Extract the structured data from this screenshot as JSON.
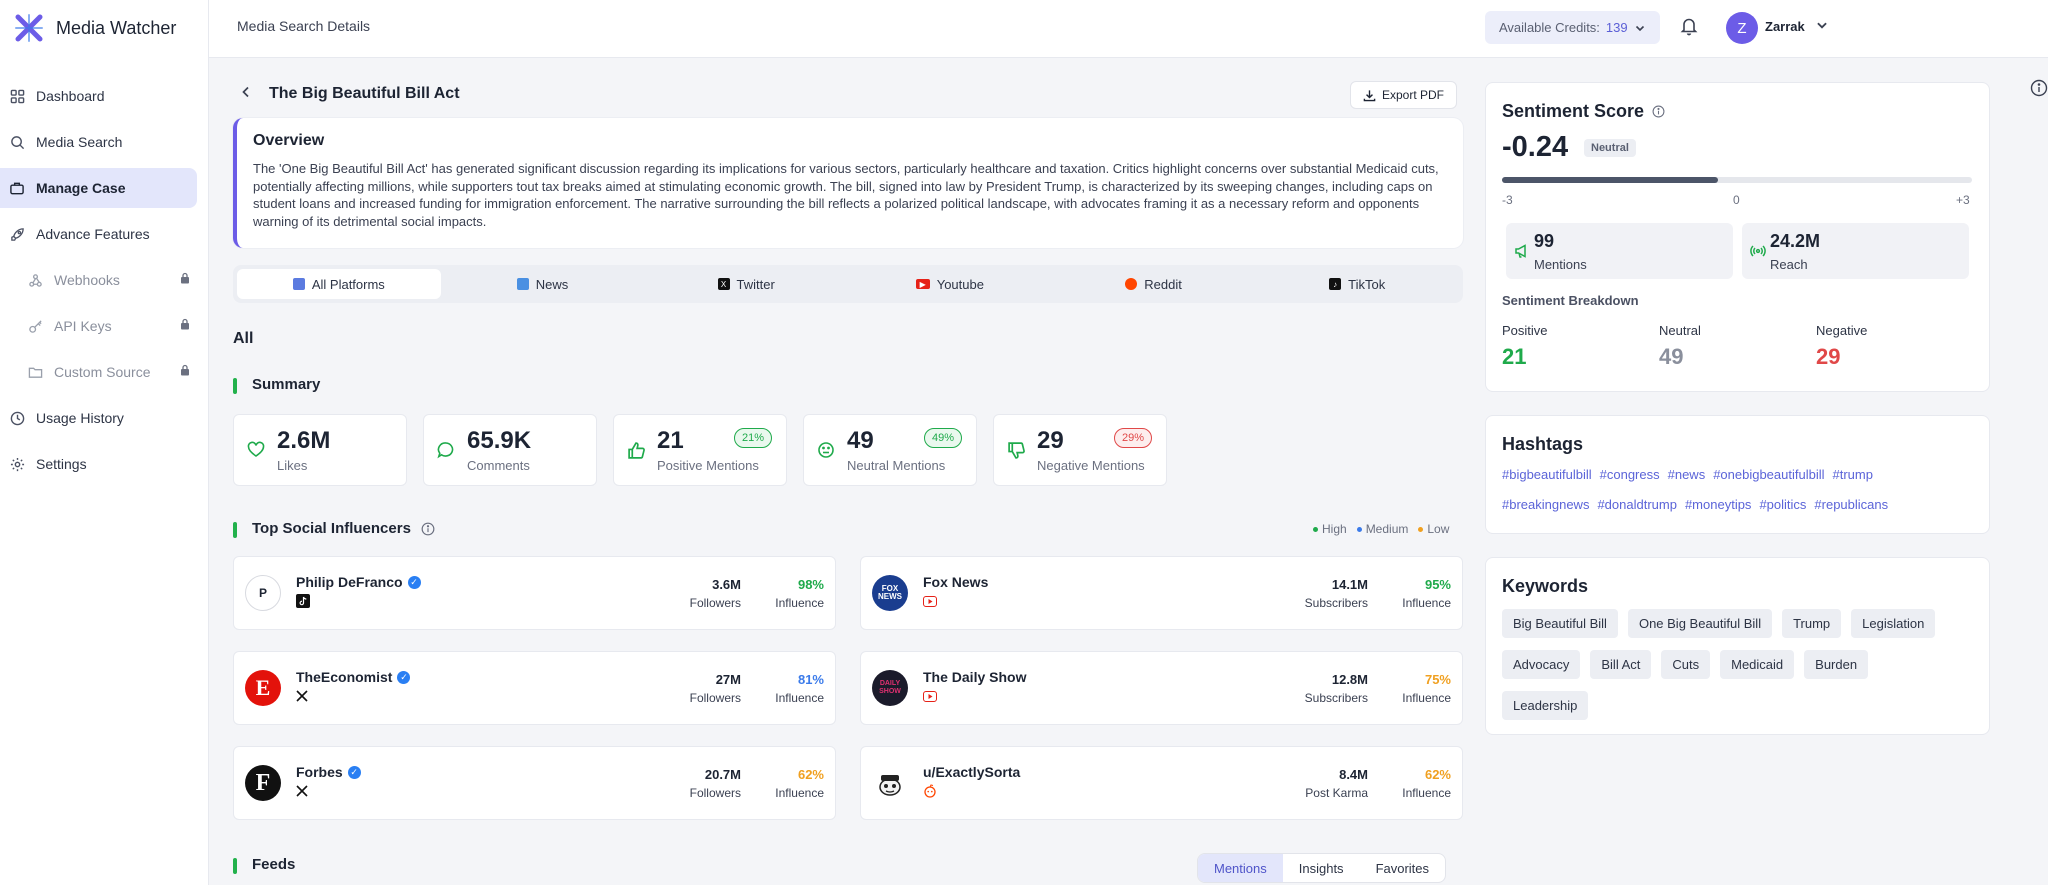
{
  "brand": {
    "name": "Media Watcher"
  },
  "topbar": {
    "title": "Media Search Details",
    "credits_label": "Available Credits:",
    "credits_value": "139",
    "user_initial": "Z",
    "user_name": "Zarrak"
  },
  "sidebar": {
    "items": [
      {
        "label": "Dashboard",
        "icon": "grid-icon"
      },
      {
        "label": "Media Search",
        "icon": "search-icon"
      },
      {
        "label": "Manage Case",
        "icon": "briefcase-icon",
        "active": true
      },
      {
        "label": "Advance Features",
        "icon": "rocket-icon"
      },
      {
        "label": "Webhooks",
        "icon": "webhook-icon",
        "locked": true
      },
      {
        "label": "API Keys",
        "icon": "key-icon",
        "locked": true
      },
      {
        "label": "Custom Source",
        "icon": "folder-icon",
        "locked": true
      },
      {
        "label": "Usage History",
        "icon": "clock-icon"
      },
      {
        "label": "Settings",
        "icon": "gear-icon"
      }
    ]
  },
  "case": {
    "title": "The Big Beautiful Bill Act",
    "export_label": "Export PDF"
  },
  "overview": {
    "title": "Overview",
    "text": "The 'One Big Beautiful Bill Act' has generated significant discussion regarding its implications for various sectors, particularly healthcare and taxation. Critics highlight concerns over substantial Medicaid cuts, potentially affecting millions, while supporters tout tax breaks aimed at stimulating economic growth. The bill, signed into law by President Trump, is characterized by its sweeping changes, including caps on student loans and increased funding for immigration enforcement. The narrative surrounding the bill reflects a polarized political landscape, with advocates framing it as a necessary reform and opponents warning of its detrimental social impacts."
  },
  "platform_tabs": [
    "All Platforms",
    "News",
    "Twitter",
    "Youtube",
    "Reddit",
    "TikTok"
  ],
  "section_all": "All",
  "summary": {
    "title": "Summary",
    "stats": [
      {
        "value": "2.6M",
        "label": "Likes"
      },
      {
        "value": "65.9K",
        "label": "Comments"
      },
      {
        "value": "21",
        "label": "Positive Mentions",
        "pct": "21%"
      },
      {
        "value": "49",
        "label": "Neutral Mentions",
        "pct": "49%"
      },
      {
        "value": "29",
        "label": "Negative Mentions",
        "pct": "29%"
      }
    ]
  },
  "influencers": {
    "title": "Top Social Influencers",
    "legend": [
      "High",
      "Medium",
      "Low"
    ],
    "items": [
      {
        "name": "Philip DeFranco",
        "verified": true,
        "platform": "tiktok-icon",
        "metric": "3.6M",
        "metric_label": "Followers",
        "influence": "98%",
        "influence_label": "Influence",
        "avatar_text": "P"
      },
      {
        "name": "Fox News",
        "verified": false,
        "platform": "youtube-icon",
        "metric": "14.1M",
        "metric_label": "Subscribers",
        "influence": "95%",
        "influence_label": "Influence",
        "avatar_text": "FOX NEWS"
      },
      {
        "name": "TheEconomist",
        "verified": true,
        "platform": "twitter-x-icon",
        "metric": "27M",
        "metric_label": "Followers",
        "influence": "81%",
        "influence_label": "Influence",
        "avatar_text": "E"
      },
      {
        "name": "The Daily Show",
        "verified": false,
        "platform": "youtube-icon",
        "metric": "12.8M",
        "metric_label": "Subscribers",
        "influence": "75%",
        "influence_label": "Influence",
        "avatar_text": "DAILY SHOW"
      },
      {
        "name": "Forbes",
        "verified": true,
        "platform": "twitter-x-icon",
        "metric": "20.7M",
        "metric_label": "Followers",
        "influence": "62%",
        "influence_label": "Influence",
        "avatar_text": "F"
      },
      {
        "name": "u/ExactlySorta",
        "verified": false,
        "platform": "reddit-icon",
        "metric": "8.4M",
        "metric_label": "Post Karma",
        "influence": "62%",
        "influence_label": "Influence",
        "avatar_text": ""
      }
    ]
  },
  "feeds": {
    "title": "Feeds",
    "tabs": [
      "Mentions",
      "Insights",
      "Favorites"
    ]
  },
  "sentiment": {
    "title": "Sentiment Score",
    "score": "-0.24",
    "badge": "Neutral",
    "scale": [
      "-3",
      "0",
      "+3"
    ],
    "score_numeric": -0.24,
    "mentions_value": "99",
    "mentions_label": "Mentions",
    "reach_value": "24.2M",
    "reach_label": "Reach",
    "breakdown_title": "Sentiment Breakdown",
    "breakdown": [
      {
        "label": "Positive",
        "value": "21"
      },
      {
        "label": "Neutral",
        "value": "49"
      },
      {
        "label": "Negative",
        "value": "29"
      }
    ]
  },
  "hashtags": {
    "title": "Hashtags",
    "items": [
      "#bigbeautifulbill",
      "#congress",
      "#news",
      "#onebigbeautifulbill",
      "#trump",
      "#breakingnews",
      "#donaldtrump",
      "#moneytips",
      "#politics",
      "#republicans"
    ]
  },
  "keywords": {
    "title": "Keywords",
    "items": [
      "Big Beautiful Bill",
      "One Big Beautiful Bill",
      "Trump",
      "Legislation",
      "Advocacy",
      "Bill Act",
      "Cuts",
      "Medicaid",
      "Burden",
      "Leadership"
    ]
  },
  "colors": {
    "accent": "#6c5ce7",
    "positive": "#1faa4b",
    "neutral": "#8a8f9c",
    "negative": "#e04848",
    "high": "#1faa4b",
    "medium": "#3b7bea",
    "low": "#f0a020"
  }
}
